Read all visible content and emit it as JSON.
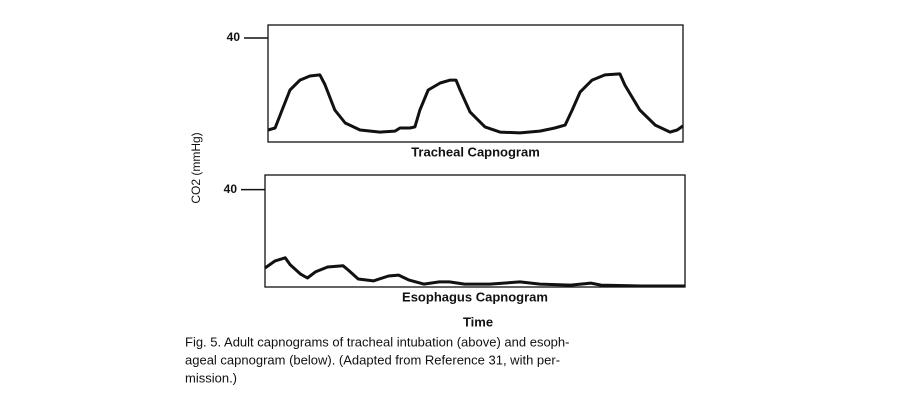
{
  "y_label": "CO2 (mmHg)",
  "x_label": "Time",
  "caption": [
    "Fig. 5. Adult capnograms of tracheal intubation (above) and esoph-",
    "ageal capnogram (below). (Adapted from Reference 31, with per-",
    "mission.)"
  ],
  "chart_data": [
    {
      "type": "line",
      "title": "Tracheal Capnogram",
      "xlim": [
        0,
        100
      ],
      "ylim": [
        0,
        45
      ],
      "yticks": [
        40
      ],
      "x": [
        0,
        1.7,
        3.4,
        5.3,
        7.7,
        10.1,
        12.5,
        13.7,
        16.1,
        18.6,
        22.2,
        27.0,
        30.6,
        31.8,
        34.2,
        35.4,
        36.6,
        38.6,
        41.5,
        43.9,
        45.3,
        46.3,
        48.7,
        52.3,
        55.9,
        60.7,
        65.5,
        69.1,
        71.6,
        73.3,
        75.2,
        78.1,
        81.2,
        84.8,
        86.0,
        89.6,
        93.3,
        96.9,
        98.6,
        100
      ],
      "series": [
        {
          "color": "#111111",
          "values": [
            4.6,
            5.4,
            12.3,
            20,
            23.8,
            25.4,
            25.8,
            22.1,
            12.3,
            7.3,
            4.6,
            3.8,
            4.2,
            5.4,
            5.4,
            5.8,
            12.3,
            20,
            22.7,
            23.8,
            23.8,
            20,
            11.5,
            5.8,
            3.8,
            3.5,
            4.2,
            5.4,
            6.5,
            12.3,
            19.2,
            23.8,
            25.8,
            26.2,
            21.9,
            12.3,
            6.5,
            3.8,
            4.6,
            6.2
          ]
        }
      ]
    },
    {
      "type": "line",
      "title": "Esophagus Capnogram",
      "xlim": [
        0,
        100
      ],
      "ylim": [
        0,
        46
      ],
      "yticks": [
        40
      ],
      "x": [
        0,
        2.4,
        4.8,
        6.0,
        8.4,
        10.1,
        12.0,
        14.9,
        18.6,
        19.8,
        22.2,
        25.8,
        29.4,
        31.8,
        34.2,
        37.8,
        41.5,
        43.9,
        47.5,
        53.5,
        60.7,
        65.5,
        72.8,
        77.6,
        80.0,
        89.6,
        100
      ],
      "series": [
        {
          "color": "#111111",
          "values": [
            7.8,
            10.7,
            12.0,
            9.1,
            5.4,
            3.7,
            6.2,
            8.2,
            8.7,
            7.0,
            3.3,
            2.5,
            4.5,
            4.9,
            2.9,
            1.2,
            2.1,
            2.1,
            1.2,
            1.2,
            2.1,
            1.2,
            0.8,
            1.6,
            0.8,
            0.4,
            0.4
          ]
        }
      ]
    }
  ]
}
